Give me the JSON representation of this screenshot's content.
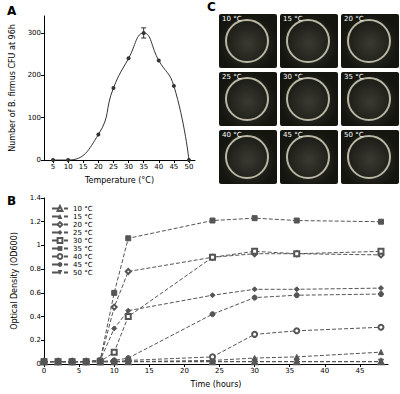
{
  "chart_data": [
    {
      "type": "line",
      "panel": "A",
      "x_label": "Temperature (°C)",
      "y_label": "Number of B. firmus CFU at 96h",
      "x": [
        5,
        10,
        20,
        25,
        30,
        35,
        40,
        45,
        50
      ],
      "values": [
        0,
        0,
        60,
        170,
        240,
        300,
        235,
        175,
        0
      ],
      "errors": [
        null,
        null,
        null,
        null,
        null,
        12,
        null,
        null,
        null
      ],
      "color": "#333333",
      "marker": "circle",
      "xlim": [
        2,
        52
      ],
      "xticks": [
        5,
        10,
        15,
        20,
        25,
        30,
        35,
        40,
        45,
        50
      ],
      "ylim": [
        0,
        340
      ],
      "yticks": [
        0,
        100,
        200,
        300
      ],
      "grid": false
    },
    {
      "type": "line",
      "panel": "B",
      "x_label": "Time (hours)",
      "y_label": "Optical Density (OD600)",
      "x": [
        0,
        2,
        4,
        6,
        8,
        10,
        12,
        24,
        30,
        36,
        48
      ],
      "series": [
        {
          "name": "10 °C",
          "color": "#555555",
          "marker": "triangle_open",
          "values": [
            0.02,
            0.02,
            0.02,
            0.02,
            0.02,
            0.02,
            0.02,
            0.02,
            0.02,
            0.02,
            0.02
          ]
        },
        {
          "name": "15 °C",
          "color": "#555555",
          "marker": "triangle",
          "values": [
            0.02,
            0.02,
            0.02,
            0.02,
            0.02,
            0.02,
            0.02,
            0.03,
            0.05,
            0.06,
            0.1
          ]
        },
        {
          "name": "20 °C",
          "color": "#555555",
          "marker": "diamond_open",
          "values": [
            0.02,
            0.02,
            0.02,
            0.02,
            0.03,
            0.48,
            0.78,
            0.9,
            0.93,
            0.93,
            0.92
          ]
        },
        {
          "name": "25 °C",
          "color": "#555555",
          "marker": "diamond",
          "values": [
            0.02,
            0.02,
            0.02,
            0.02,
            0.03,
            0.3,
            0.45,
            0.58,
            0.63,
            0.63,
            0.64
          ]
        },
        {
          "name": "30 °C",
          "color": "#555555",
          "marker": "square_open",
          "values": [
            0.02,
            0.02,
            0.02,
            0.02,
            0.02,
            0.1,
            0.4,
            0.9,
            0.95,
            0.93,
            0.95
          ]
        },
        {
          "name": "35 °C",
          "color": "#555555",
          "marker": "square",
          "values": [
            0.02,
            0.02,
            0.02,
            0.02,
            0.03,
            0.6,
            1.06,
            1.21,
            1.23,
            1.21,
            1.2
          ]
        },
        {
          "name": "40 °C",
          "color": "#555555",
          "marker": "circle_open",
          "values": [
            0.02,
            0.02,
            0.02,
            0.02,
            0.02,
            0.02,
            0.03,
            0.06,
            0.25,
            0.28,
            0.31
          ]
        },
        {
          "name": "45 °C",
          "color": "#555555",
          "marker": "circle",
          "values": [
            0.02,
            0.02,
            0.02,
            0.02,
            0.02,
            0.03,
            0.05,
            0.42,
            0.56,
            0.58,
            0.59
          ]
        },
        {
          "name": "50 °C",
          "color": "#555555",
          "marker": "triangle_down",
          "values": [
            0.02,
            0.02,
            0.02,
            0.02,
            0.02,
            0.02,
            0.02,
            0.02,
            0.02,
            0.02,
            0.02
          ]
        }
      ],
      "line_style": "dashed",
      "legend": "upper left",
      "xlim": [
        0,
        49
      ],
      "xticks": [
        0,
        5,
        10,
        15,
        20,
        25,
        30,
        35,
        40,
        45
      ],
      "ylim": [
        0,
        1.4
      ],
      "yticks": [
        0,
        0.2,
        0.4,
        0.6,
        0.8,
        1,
        1.2,
        1.4
      ],
      "grid": false
    }
  ],
  "photo_panel": {
    "panel": "C",
    "labels": [
      "10 °C",
      "15 °C",
      "20 °C",
      "25 °C",
      "30 °C",
      "35 °C",
      "40 °C",
      "45 °C",
      "50 °C"
    ]
  }
}
